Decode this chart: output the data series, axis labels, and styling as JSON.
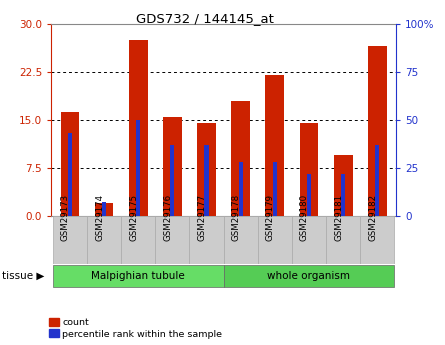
{
  "title": "GDS732 / 144145_at",
  "samples": [
    "GSM29173",
    "GSM29174",
    "GSM29175",
    "GSM29176",
    "GSM29177",
    "GSM29178",
    "GSM29179",
    "GSM29180",
    "GSM29181",
    "GSM29182"
  ],
  "counts": [
    16.2,
    2.0,
    27.5,
    15.5,
    14.5,
    18.0,
    22.0,
    14.5,
    9.5,
    26.5
  ],
  "percentiles": [
    43,
    7,
    50,
    37,
    37,
    28,
    28,
    22,
    22,
    37
  ],
  "tissue_groups": [
    {
      "label": "Malpighian tubule",
      "start": 0,
      "end": 5,
      "color": "#66dd66"
    },
    {
      "label": "whole organism",
      "start": 5,
      "end": 10,
      "color": "#55cc55"
    }
  ],
  "bar_color_red": "#cc2200",
  "bar_color_blue": "#2233cc",
  "left_yticks": [
    0,
    7.5,
    15,
    22.5,
    30
  ],
  "right_yticks": [
    0,
    25,
    50,
    75,
    100
  ],
  "left_ylim": [
    0,
    30
  ],
  "right_ylim": [
    0,
    100
  ],
  "background_color": "#ffffff",
  "axis_color_left": "#cc2200",
  "axis_color_right": "#2233cc",
  "tissue_label": "tissue",
  "legend_count": "count",
  "legend_pct": "percentile rank within the sample",
  "box_color": "#cccccc",
  "box_edge": "#aaaaaa"
}
